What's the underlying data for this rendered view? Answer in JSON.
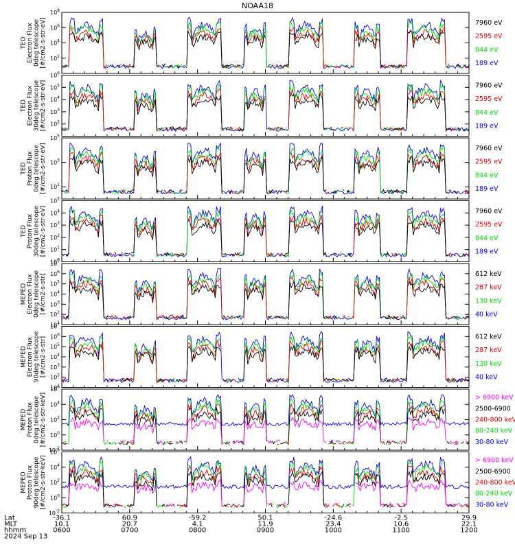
{
  "title": "NOAA18",
  "date_label": "2024 Sep 13",
  "time_axis": {
    "row_labels": [
      "Lat",
      "MLT",
      "hhmm"
    ],
    "ticks": [
      {
        "lat": "-36.1",
        "mlt": "10.1",
        "hhmm": "0600"
      },
      {
        "lat": "60.9",
        "mlt": "20.7",
        "hhmm": "0700"
      },
      {
        "lat": "-59.2",
        "mlt": "4.1",
        "hhmm": "0800"
      },
      {
        "lat": "50.1",
        "mlt": "11.9",
        "hhmm": "0900"
      },
      {
        "lat": "-24.6",
        "mlt": "23.4",
        "hhmm": "1000"
      },
      {
        "lat": "-2.5",
        "mlt": "10.6",
        "hhmm": "1100"
      },
      {
        "lat": "29.9",
        "mlt": "22.1",
        "hhmm": "1200"
      }
    ]
  },
  "colors": {
    "black": "#000000",
    "red": "#e00000",
    "green": "#00dd00",
    "blue": "#0000ee",
    "magenta": "#ff00ff"
  },
  "chart_data": [
    {
      "type": "line",
      "ylabel": [
        "TED",
        "Electron Flux",
        "0deg telescope",
        "[#/cm2-s-str-eV]"
      ],
      "ytick_exponents": [
        2,
        4,
        6,
        8
      ],
      "ymin_exp": 0,
      "ymax_exp": 8,
      "series": [
        {
          "name": "7960 eV",
          "color": "#000000"
        },
        {
          "name": "2595 eV",
          "color": "#e00000"
        },
        {
          "name": "844 eV",
          "color": "#00dd00"
        },
        {
          "name": "189 eV",
          "color": "#0000ee"
        }
      ]
    },
    {
      "type": "line",
      "ylabel": [
        "TED",
        "Electron Flux",
        "30deg telescope",
        "[#/cm2-s-str-eV]"
      ],
      "ytick_exponents": [
        2,
        3,
        4,
        5,
        6
      ],
      "ymin_exp": 1,
      "ymax_exp": 6,
      "series": [
        {
          "name": "7960 eV",
          "color": "#000000"
        },
        {
          "name": "2595 eV",
          "color": "#e00000"
        },
        {
          "name": "844 eV",
          "color": "#00dd00"
        },
        {
          "name": "189 eV",
          "color": "#0000ee"
        }
      ]
    },
    {
      "type": "line",
      "ylabel": [
        "TED",
        "Proton Flux",
        "0deg telescope",
        "[#/cm2-s-str-eV]"
      ],
      "ytick_exponents": [
        1,
        3,
        5
      ],
      "ymin_exp": 0,
      "ymax_exp": 5,
      "series": [
        {
          "name": "7960 eV",
          "color": "#000000"
        },
        {
          "name": "2595 eV",
          "color": "#e00000"
        },
        {
          "name": "844 eV",
          "color": "#00dd00"
        },
        {
          "name": "189 eV",
          "color": "#0000ee"
        }
      ]
    },
    {
      "type": "line",
      "ylabel": [
        "TED",
        "Proton Flux",
        "30deg telescope",
        "[#/cm2-s-str-eV]"
      ],
      "ytick_exponents": [
        0,
        1,
        2,
        3,
        4,
        5
      ],
      "ymin_exp": 0,
      "ymax_exp": 5,
      "series": [
        {
          "name": "7960 eV",
          "color": "#000000"
        },
        {
          "name": "2595 eV",
          "color": "#e00000"
        },
        {
          "name": "844 eV",
          "color": "#00dd00"
        },
        {
          "name": "189 eV",
          "color": "#0000ee"
        }
      ]
    },
    {
      "type": "line",
      "ylabel": [
        "MEPED",
        "Electron Flux",
        "0deg telescope",
        "[#/cm2-s-str]"
      ],
      "ytick_exponents": [
        1,
        2,
        3,
        4,
        5,
        6,
        7
      ],
      "ymin_exp": 1,
      "ymax_exp": 7,
      "series": [
        {
          "name": "612 keV",
          "color": "#000000"
        },
        {
          "name": "287 keV",
          "color": "#e00000"
        },
        {
          "name": "130 keV",
          "color": "#00dd00"
        },
        {
          "name": "40 keV",
          "color": "#0000ee"
        }
      ]
    },
    {
      "type": "line",
      "ylabel": [
        "MEPED",
        "Electron Flux",
        "90deg telescope",
        "[#/cm2-s-str]"
      ],
      "ytick_exponents": [
        1,
        2,
        3,
        4,
        5,
        6,
        7
      ],
      "ymin_exp": 1,
      "ymax_exp": 7,
      "series": [
        {
          "name": "612 keV",
          "color": "#000000"
        },
        {
          "name": "287 keV",
          "color": "#e00000"
        },
        {
          "name": "130 keV",
          "color": "#00dd00"
        },
        {
          "name": "40 keV",
          "color": "#0000ee"
        }
      ]
    },
    {
      "type": "line",
      "ylabel": [
        "MEPED",
        "Proton Flux",
        "0deg telescope",
        "[#/cm2-s-str-keV]"
      ],
      "ytick_exponents": [
        -2,
        0,
        2,
        4,
        6
      ],
      "ymin_exp": -2,
      "ymax_exp": 6,
      "series": [
        {
          "name": "> 6900 keV",
          "color": "#ff00ff"
        },
        {
          "name": "2500-6900",
          "color": "#000000"
        },
        {
          "name": "240-800 keV",
          "color": "#e00000"
        },
        {
          "name": "80-240 keV",
          "color": "#00dd00"
        },
        {
          "name": "30-80 keV",
          "color": "#0000ee"
        }
      ]
    },
    {
      "type": "line",
      "ylabel": [
        "MEPED",
        "Proton Flux",
        "90deg telescope",
        "[#/cm2-s-str-keV]"
      ],
      "ytick_exponents": [
        -2,
        0,
        2,
        4,
        6
      ],
      "ymin_exp": -2,
      "ymax_exp": 6,
      "series": [
        {
          "name": "> 6900 keV",
          "color": "#ff00ff"
        },
        {
          "name": "2500-6900",
          "color": "#000000"
        },
        {
          "name": "240-800 keV",
          "color": "#e00000"
        },
        {
          "name": "80-240 keV",
          "color": "#00dd00"
        },
        {
          "name": "30-80 keV",
          "color": "#0000ee"
        }
      ]
    }
  ]
}
